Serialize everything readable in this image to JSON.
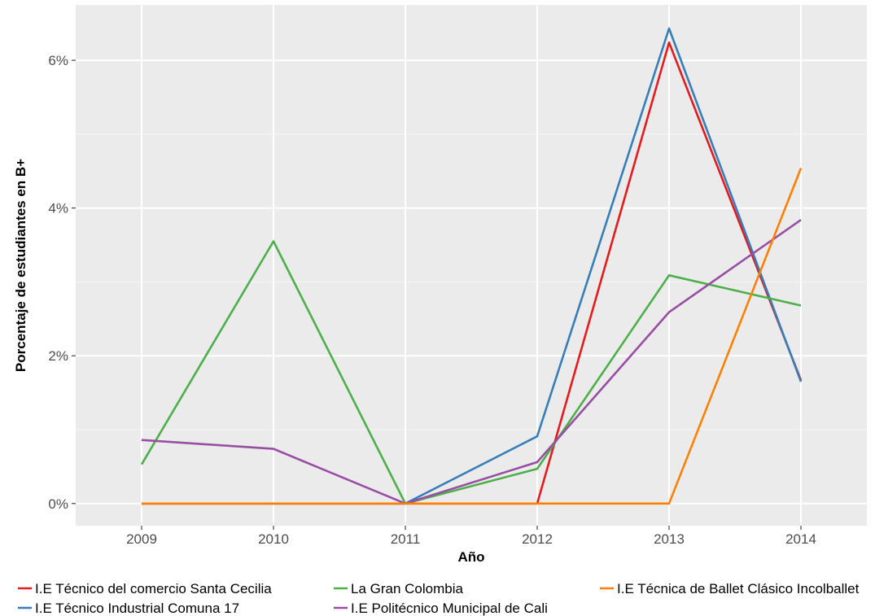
{
  "chart_data": {
    "type": "line",
    "xlabel": "Año",
    "ylabel": "Porcentaje de estudiantes en B+",
    "x": [
      2009,
      2010,
      2011,
      2012,
      2013,
      2014
    ],
    "xlim": [
      2008.5,
      2014.5
    ],
    "ylim": [
      -0.3,
      6.75
    ],
    "y_ticks": [
      0,
      2,
      4,
      6
    ],
    "y_tick_labels": [
      "0%",
      "2%",
      "4%",
      "6%"
    ],
    "grid": true,
    "legend_position": "bottom",
    "series": [
      {
        "name": "I.E Técnico del comercio Santa Cecilia",
        "color": "#e41a1c",
        "values": [
          0,
          0,
          0,
          0,
          6.24,
          1.67
        ]
      },
      {
        "name": "I.E Técnico Industrial Comuna 17",
        "color": "#377eb8",
        "values": [
          0,
          0,
          0,
          0.91,
          6.43,
          1.65
        ]
      },
      {
        "name": "La Gran Colombia",
        "color": "#4daf4a",
        "values": [
          0.53,
          3.55,
          0,
          0.47,
          3.09,
          2.68
        ]
      },
      {
        "name": "I.E Politécnico Municipal de Cali",
        "color": "#984ea3",
        "values": [
          0.86,
          0.74,
          0,
          0.56,
          2.59,
          3.84
        ]
      },
      {
        "name": "I.E Técnica de Ballet Clásico Incolballet",
        "color": "#ff7f00",
        "values": [
          0,
          0,
          0,
          0,
          0,
          4.54
        ]
      }
    ]
  }
}
